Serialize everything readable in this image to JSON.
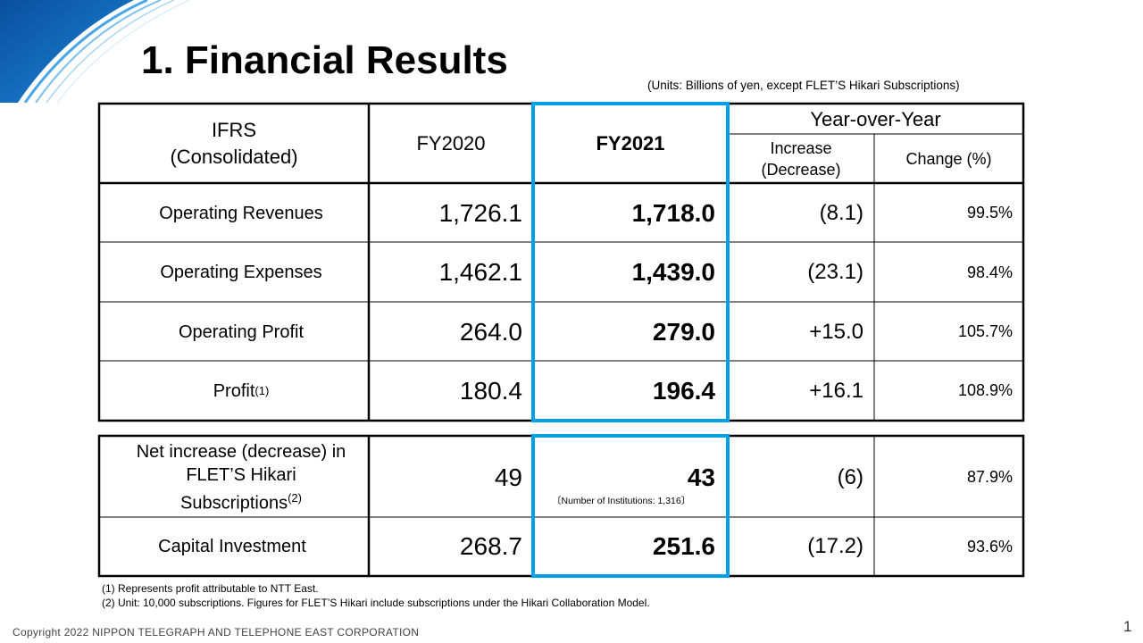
{
  "title": "1. Financial Results",
  "units_note": "(Units:  Billions of yen, except FLET’S Hikari Subscriptions)",
  "header": {
    "col0_line1": "IFRS",
    "col0_line2": "(Consolidated)",
    "fy2020": "FY2020",
    "fy2021": "FY2021",
    "yoy": "Year-over-Year",
    "increase_line1": "Increase",
    "increase_line2": "(Decrease)",
    "change": "Change (%)"
  },
  "rows": [
    {
      "label": "Operating Revenues",
      "fy2020": "1,726.1",
      "fy2021": "1,718.0",
      "increase": "(8.1)",
      "change": "99.5%"
    },
    {
      "label": "Operating Expenses",
      "fy2020": "1,462.1",
      "fy2021": "1,439.0",
      "increase": "(23.1)",
      "change": "98.4%"
    },
    {
      "label": "Operating Profit",
      "fy2020": "264.0",
      "fy2021": "279.0",
      "increase": "+15.0",
      "change": "105.7%"
    },
    {
      "label": "Profit",
      "sup": "(1)",
      "fy2020": "180.4",
      "fy2021": "196.4",
      "increase": "+16.1",
      "change": "108.9%"
    }
  ],
  "rows2": [
    {
      "label_line1": "Net increase (decrease) in",
      "label_line2": "FLET’S Hikari",
      "label_line3": "Subscriptions",
      "sup": "(2)",
      "fy2020": "49",
      "fy2021": "43",
      "fy2021_note": "〔Number of Institutions: 1,316〕",
      "increase": "(6)",
      "change": "87.9%"
    },
    {
      "label": "Capital Investment",
      "fy2020": "268.7",
      "fy2021": "251.6",
      "increase": "(17.2)",
      "change": "93.6%"
    }
  ],
  "footnotes": [
    "(1)  Represents profit attributable to NTT East.",
    "(2)  Unit: 10,000 subscriptions. Figures for FLET’S Hikari include subscriptions under the Hikari Collaboration Model."
  ],
  "copyright": "Copyright 2022 NIPPON TELEGRAPH AND TELEPHONE EAST CORPORATION",
  "page_number": "1",
  "colors": {
    "highlight": "#00a0e9",
    "corner_blue": "#0a5aa8",
    "border": "#000000"
  }
}
